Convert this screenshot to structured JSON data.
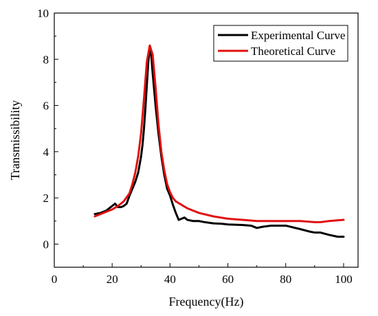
{
  "chart_data": {
    "type": "line",
    "title": "",
    "xlabel": "Frequency(Hz)",
    "ylabel": "Transmissibility",
    "xlim": [
      0,
      105
    ],
    "ylim": [
      -1,
      10
    ],
    "xticks": [
      0,
      20,
      40,
      60,
      80,
      100
    ],
    "yticks": [
      0,
      2,
      4,
      6,
      8,
      10
    ],
    "grid": false,
    "legend_position": "top-right",
    "series": [
      {
        "name": "Experimental Curve",
        "color": "#000000",
        "x": [
          14,
          16,
          18,
          19,
          20,
          21,
          22,
          23,
          24,
          25,
          26,
          27,
          28,
          29,
          30,
          30.5,
          31,
          31.5,
          32,
          32.5,
          33,
          33.5,
          34,
          35,
          36,
          37,
          38,
          39,
          40,
          41,
          42,
          43,
          44,
          45,
          46,
          48,
          50,
          52,
          55,
          58,
          60,
          65,
          68,
          70,
          72,
          75,
          78,
          80,
          85,
          88,
          90,
          92,
          95,
          98,
          100
        ],
        "y": [
          1.3,
          1.35,
          1.45,
          1.55,
          1.65,
          1.75,
          1.6,
          1.6,
          1.65,
          1.75,
          2.1,
          2.4,
          2.7,
          3.1,
          3.8,
          4.3,
          5.0,
          5.9,
          6.9,
          7.9,
          8.4,
          8.2,
          7.4,
          6.0,
          4.8,
          3.8,
          3.0,
          2.4,
          2.1,
          1.7,
          1.35,
          1.05,
          1.1,
          1.15,
          1.05,
          1.0,
          1.0,
          0.95,
          0.9,
          0.88,
          0.85,
          0.83,
          0.8,
          0.7,
          0.75,
          0.8,
          0.8,
          0.8,
          0.65,
          0.55,
          0.5,
          0.5,
          0.4,
          0.32,
          0.32
        ]
      },
      {
        "name": "Theoretical Curve",
        "color": "#e0100f",
        "x": [
          14,
          16,
          18,
          20,
          22,
          24,
          26,
          27,
          28,
          29,
          30,
          31,
          32,
          33,
          34,
          35,
          36,
          37,
          38,
          39,
          40,
          41,
          42,
          44,
          46,
          48,
          50,
          55,
          60,
          65,
          70,
          75,
          80,
          85,
          90,
          92,
          95,
          100
        ],
        "y": [
          1.2,
          1.3,
          1.4,
          1.5,
          1.65,
          1.85,
          2.2,
          2.6,
          3.1,
          3.8,
          4.8,
          6.3,
          7.9,
          8.6,
          8.2,
          6.8,
          5.2,
          4.0,
          3.2,
          2.6,
          2.25,
          2.0,
          1.85,
          1.7,
          1.55,
          1.45,
          1.35,
          1.2,
          1.1,
          1.05,
          1.0,
          1.0,
          1.0,
          1.0,
          0.95,
          0.95,
          1.0,
          1.05
        ]
      }
    ]
  }
}
